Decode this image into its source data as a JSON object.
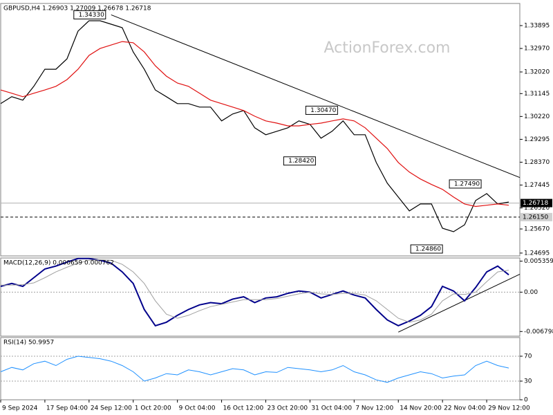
{
  "chart_data": [
    {
      "type": "line",
      "title": "GBPUSD,H4  1.26903 1.27009 1.26678 1.26718",
      "watermark": "ActionForex.com",
      "x": [
        0,
        1,
        2,
        3,
        4,
        5,
        6,
        7,
        8,
        9,
        10,
        11,
        12,
        13,
        14,
        15,
        16,
        17,
        18,
        19,
        20,
        21,
        22,
        23,
        24,
        25,
        26,
        27,
        28,
        29,
        30,
        31,
        32,
        33,
        34,
        35,
        36,
        37,
        38,
        39,
        40,
        41,
        42,
        43,
        44,
        45,
        46
      ],
      "xlim": [
        0,
        47
      ],
      "ylim": [
        1.2458,
        1.3479
      ],
      "yticks": [
        1.33895,
        {
          "value": 1.3297,
          "label": "1.32970"
        },
        {
          "value": 1.3202,
          "label": "1.32020"
        },
        1.31145,
        {
          "value": 1.3022,
          "label": "1.30220"
        },
        1.29295,
        {
          "value": 1.2837,
          "label": "1.28370"
        },
        1.27445,
        {
          "value": 1.2652,
          "label": "1.26520"
        },
        {
          "value": 1.2567,
          "label": "1.25670"
        },
        1.24695
      ],
      "series": [
        {
          "color": "#000000",
          "values": [
            1.3074,
            1.3102,
            1.3088,
            1.3144,
            1.3213,
            1.3213,
            1.3255,
            1.3367,
            1.3409,
            1.3409,
            1.3395,
            1.3381,
            1.3283,
            1.3213,
            1.3129,
            1.3102,
            1.3074,
            1.3074,
            1.306,
            1.306,
            1.3004,
            1.3032,
            1.3046,
            1.2976,
            1.2948,
            1.2962,
            1.2976,
            1.3004,
            1.299,
            1.2934,
            1.2962,
            1.3004,
            1.2948,
            1.2948,
            1.2836,
            1.2752,
            1.2696,
            1.264,
            1.2668,
            1.2668,
            1.257,
            1.2556,
            1.2584,
            1.2682,
            1.271,
            1.2668,
            1.2676
          ]
        },
        {
          "color": "#e01010",
          "values": [
            1.3129,
            1.3116,
            1.3102,
            1.3116,
            1.3129,
            1.3144,
            1.3171,
            1.3213,
            1.3269,
            1.3297,
            1.3311,
            1.3325,
            1.332,
            1.3283,
            1.3227,
            1.3185,
            1.3157,
            1.3144,
            1.3116,
            1.3088,
            1.3074,
            1.306,
            1.3046,
            1.3023,
            1.3004,
            1.2995,
            1.2984,
            1.2984,
            1.299,
            1.2995,
            1.3004,
            1.3012,
            1.3004,
            1.2976,
            1.2934,
            1.2892,
            1.2836,
            1.2797,
            1.2769,
            1.2747,
            1.2727,
            1.2696,
            1.2668,
            1.2658,
            1.2663,
            1.2668,
            1.2663
          ]
        }
      ],
      "hlines": [
        {
          "value": 1.26718,
          "label": "1.26718",
          "style": "solid"
        },
        {
          "value": 1.2615,
          "label": "1.26150",
          "style": "dashed"
        }
      ],
      "trendlines": [
        {
          "x": [
            10,
            47
          ],
          "values": [
            1.3433,
            1.2775
          ]
        }
      ],
      "annotations": [
        {
          "x": 9.5,
          "value": 1.3433,
          "label": "1.34330"
        },
        {
          "x": 30.5,
          "value": 1.3047,
          "label": "1.30470"
        },
        {
          "x": 28.5,
          "value": 1.2842,
          "label": "1.28420"
        },
        {
          "x": 43.5,
          "value": 1.2749,
          "label": "1.27490"
        },
        {
          "x": 40,
          "value": 1.2486,
          "label": "1.24860"
        }
      ]
    },
    {
      "type": "line",
      "title": "MACD(12,26,9) 0.000659 0.000762",
      "x": [
        0,
        1,
        2,
        3,
        4,
        5,
        6,
        7,
        8,
        9,
        10,
        11,
        12,
        13,
        14,
        15,
        16,
        17,
        18,
        19,
        20,
        21,
        22,
        23,
        24,
        25,
        26,
        27,
        28,
        29,
        30,
        31,
        32,
        33,
        34,
        35,
        36,
        37,
        38,
        39,
        40,
        41,
        42,
        43,
        44,
        45,
        46
      ],
      "xlim": [
        0,
        47
      ],
      "ylim": [
        -0.0076,
        0.0059
      ],
      "yticks": [
        0.005359,
        {
          "value": 0,
          "label": "0.00"
        },
        -0.006798
      ],
      "levels": [
        0
      ],
      "series": [
        {
          "color": "#00008b",
          "width": 2,
          "values": [
            0.001,
            0.0015,
            0.001,
            0.0025,
            0.004,
            0.0045,
            0.0052,
            0.0058,
            0.0058,
            0.0055,
            0.005,
            0.0035,
            0.0015,
            -0.003,
            -0.0058,
            -0.0052,
            -0.004,
            -0.003,
            -0.0022,
            -0.0018,
            -0.002,
            -0.0012,
            -0.0008,
            -0.0018,
            -0.001,
            -0.0008,
            -0.0002,
            0.0002,
            0,
            -0.001,
            -0.0004,
            0.0002,
            -0.0005,
            -0.001,
            -0.003,
            -0.0048,
            -0.0058,
            -0.005,
            -0.004,
            -0.0025,
            0.001,
            0.0002,
            -0.0015,
            0.0008,
            0.0035,
            0.0045,
            0.003
          ]
        },
        {
          "color": "#a0a0a0",
          "width": 1,
          "values": [
            0.0012,
            0.0012,
            0.0013,
            0.0016,
            0.0025,
            0.0035,
            0.0043,
            0.005,
            0.0055,
            0.0056,
            0.0055,
            0.0048,
            0.0035,
            0.0015,
            -0.0015,
            -0.0038,
            -0.0045,
            -0.004,
            -0.0032,
            -0.0025,
            -0.0021,
            -0.0017,
            -0.0013,
            -0.0013,
            -0.0013,
            -0.0011,
            -0.0007,
            -0.0003,
            0,
            -0.0003,
            -0.0004,
            -0.0002,
            -0.0002,
            -0.0005,
            -0.0015,
            -0.003,
            -0.0045,
            -0.0052,
            -0.0048,
            -0.0038,
            -0.0015,
            -0.0003,
            -0.0004,
            0,
            0.0018,
            0.0035,
            0.0038
          ]
        }
      ],
      "trendlines": [
        {
          "x": [
            36,
            47
          ],
          "values": [
            -0.0069,
            0.0031
          ]
        }
      ]
    },
    {
      "type": "line",
      "title": "RSI(14) 50.9957",
      "x": [
        0,
        1,
        2,
        3,
        4,
        5,
        6,
        7,
        8,
        9,
        10,
        11,
        12,
        13,
        14,
        15,
        16,
        17,
        18,
        19,
        20,
        21,
        22,
        23,
        24,
        25,
        26,
        27,
        28,
        29,
        30,
        31,
        32,
        33,
        34,
        35,
        36,
        37,
        38,
        39,
        40,
        41,
        42,
        43,
        44,
        45,
        46
      ],
      "xlim": [
        0,
        47
      ],
      "ylim": [
        0,
        100
      ],
      "yticks": [
        70,
        30,
        0
      ],
      "levels": [
        70,
        30
      ],
      "xticks": [
        {
          "value": 0,
          "label": "9 Sep 2024"
        },
        {
          "value": 4,
          "label": "17 Sep 04:00"
        },
        {
          "value": 8,
          "label": "24 Sep 12:00"
        },
        {
          "value": 12,
          "label": "1 Oct 20:00"
        },
        {
          "value": 16,
          "label": "9 Oct 04:00"
        },
        {
          "value": 20,
          "label": "16 Oct 12:00"
        },
        {
          "value": 24,
          "label": "23 Oct 20:00"
        },
        {
          "value": 28,
          "label": "31 Oct 04:00"
        },
        {
          "value": 32,
          "label": "7 Nov 12:00"
        },
        {
          "value": 36,
          "label": "14 Nov 20:00"
        },
        {
          "value": 40,
          "label": "22 Nov 04:00"
        },
        {
          "value": 44,
          "label": "29 Nov 12:00"
        }
      ],
      "series": [
        {
          "color": "#1e90ff",
          "width": 1,
          "values": [
            45,
            52,
            48,
            58,
            62,
            55,
            65,
            70,
            68,
            66,
            62,
            55,
            45,
            30,
            35,
            42,
            40,
            48,
            45,
            40,
            45,
            50,
            48,
            40,
            45,
            44,
            52,
            50,
            48,
            45,
            48,
            55,
            45,
            40,
            32,
            28,
            35,
            40,
            45,
            42,
            35,
            38,
            40,
            55,
            62,
            55,
            51
          ]
        }
      ]
    }
  ]
}
